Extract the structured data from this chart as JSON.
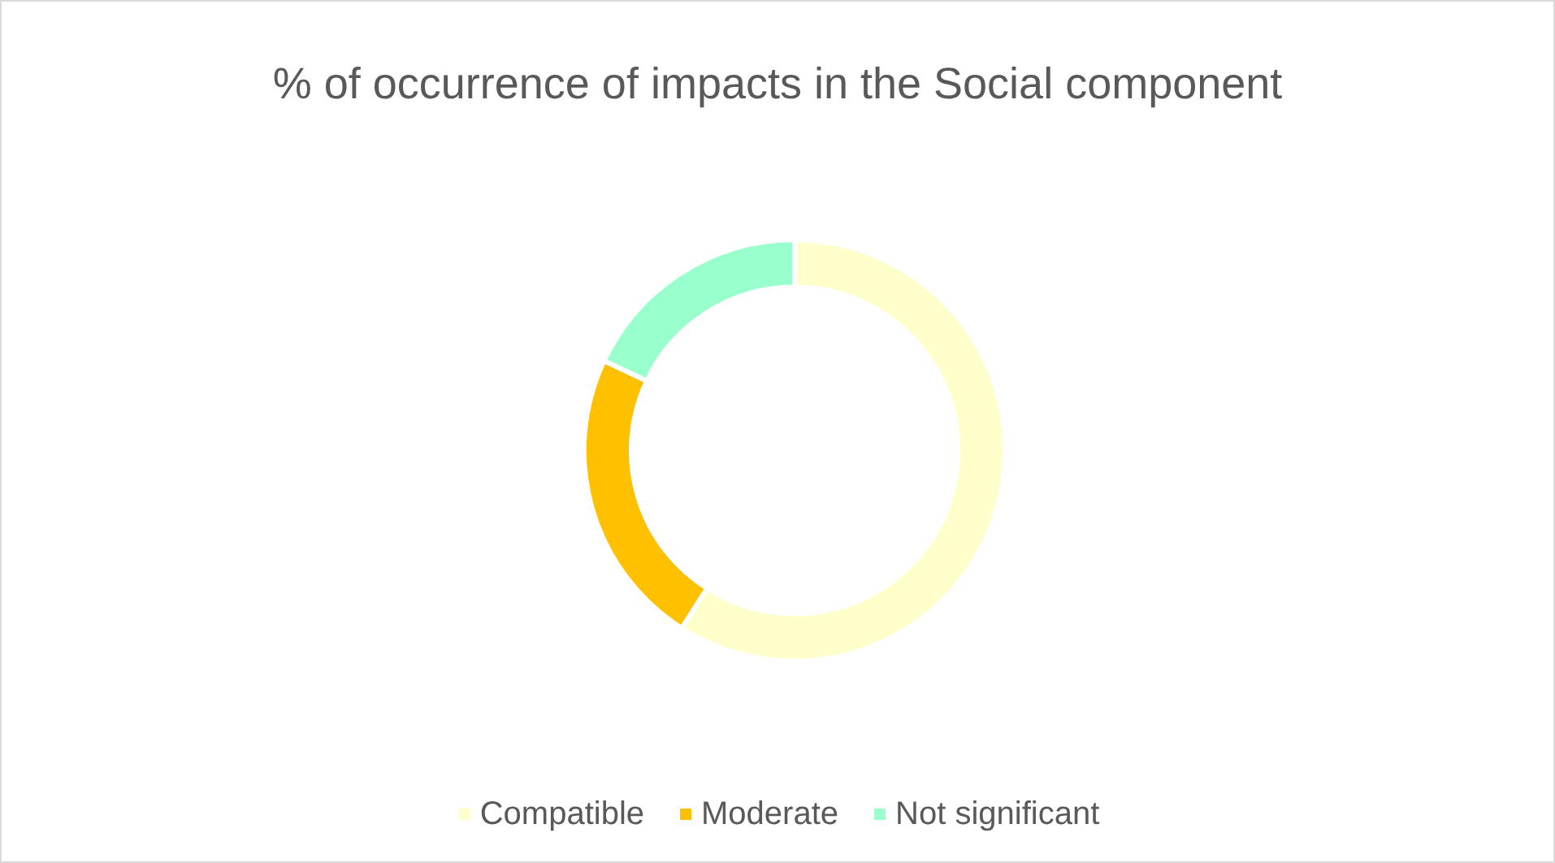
{
  "chart_data": {
    "type": "donut",
    "title": "% of occurrence of impacts in the Social component",
    "categories": [
      "Compatible",
      "Moderate",
      "Not significant"
    ],
    "values": [
      59,
      23,
      18
    ],
    "colors": [
      "#ffffcc",
      "#ffc000",
      "#99ffcc"
    ],
    "legend": "bottom"
  }
}
